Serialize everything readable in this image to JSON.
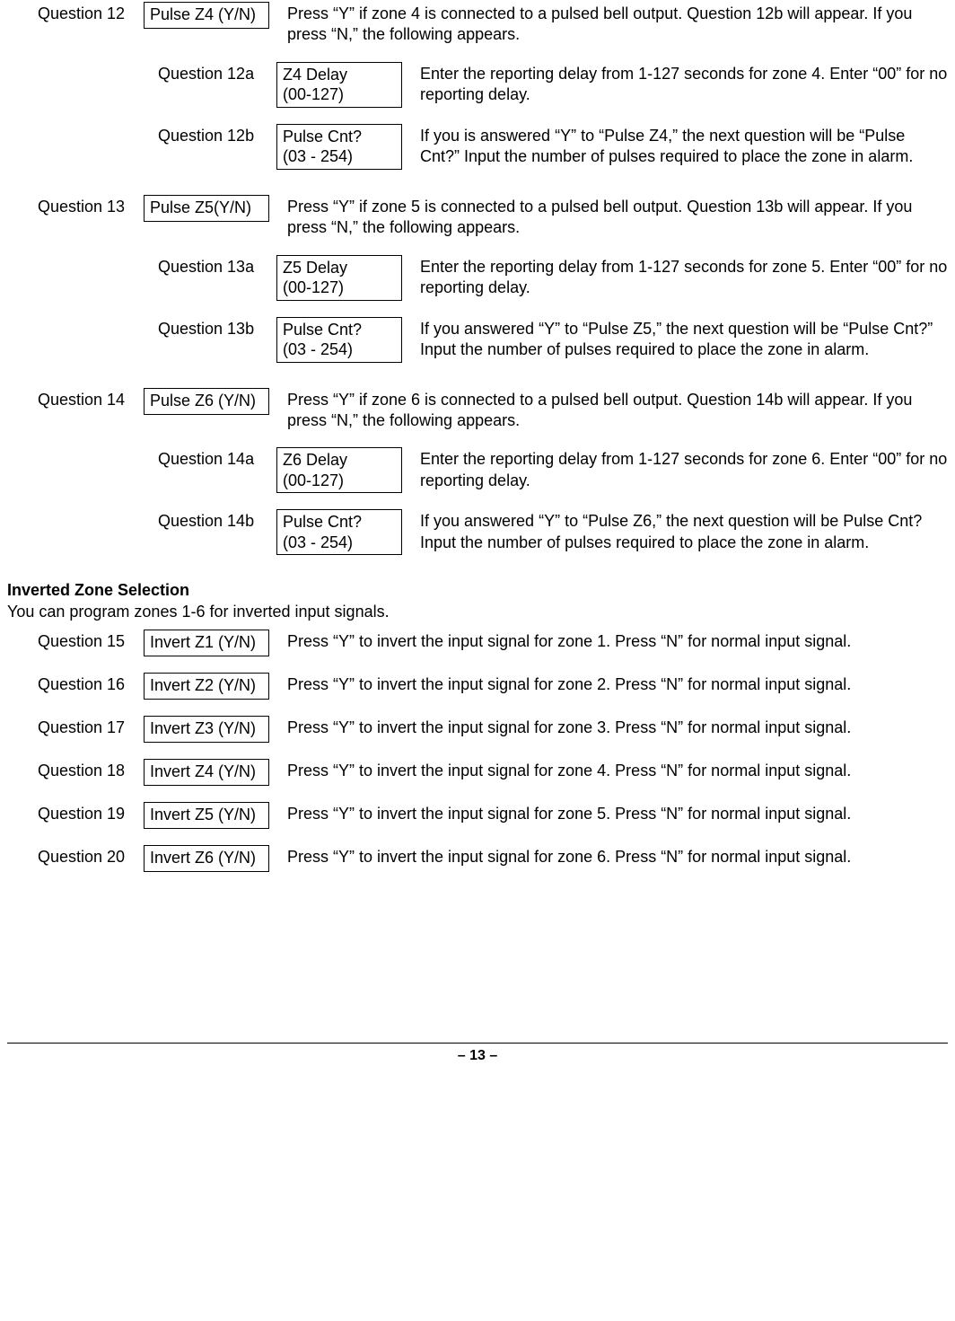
{
  "page": {
    "number": "– 13 –"
  },
  "section_inverted": {
    "heading": "Inverted Zone Selection",
    "intro": "You can program zones 1-6 for inverted input signals."
  },
  "rows": [
    {
      "id": "q12",
      "level": "main",
      "q": "Question 12",
      "disp": "Pulse Z4 (Y/N)",
      "disp_lines": 1,
      "desc": "Press “Y” if zone 4 is connected to a pulsed bell output. Question 12b will appear. If you press “N,” the following appears."
    },
    {
      "id": "q12a",
      "level": "sub",
      "q": "Question 12a",
      "disp": "Z4 Delay\n(00-127)",
      "disp_lines": 2,
      "desc": "Enter the reporting delay from 1-127 seconds for zone 4. Enter “00” for no reporting delay."
    },
    {
      "id": "q12b",
      "level": "sub",
      "q": "Question 12b",
      "disp": "Pulse Cnt?\n(03 - 254)",
      "disp_lines": 2,
      "desc": "If you is answered “Y” to “Pulse Z4,” the next question will be “Pulse Cnt?”  Input the number of pulses required to place the zone in alarm."
    },
    {
      "id": "q13",
      "level": "main",
      "q": "Question 13",
      "disp": "Pulse Z5(Y/N)",
      "disp_lines": 1,
      "desc": "Press “Y” if zone 5 is connected to a pulsed bell output. Question 13b will appear. If you press “N,” the following appears."
    },
    {
      "id": "q13a",
      "level": "sub",
      "q": "Question 13a",
      "disp": "Z5 Delay\n(00-127)",
      "disp_lines": 2,
      "desc": "Enter the reporting delay from 1-127 seconds for zone 5. Enter “00” for no reporting delay."
    },
    {
      "id": "q13b",
      "level": "sub",
      "q": "Question 13b",
      "disp": "Pulse Cnt?\n(03 - 254)",
      "disp_lines": 2,
      "desc": "If you answered “Y” to “Pulse Z5,” the next question will be “Pulse Cnt?”  Input the number of pulses required to place the zone in alarm."
    },
    {
      "id": "q14",
      "level": "main",
      "q": "Question 14",
      "disp": "Pulse Z6 (Y/N)",
      "disp_lines": 1,
      "desc": "Press “Y” if zone 6 is connected to a pulsed bell output. Question 14b will appear. If you press “N,” the following appears."
    },
    {
      "id": "q14a",
      "level": "sub",
      "q": "Question 14a",
      "disp": "Z6 Delay\n(00-127)",
      "disp_lines": 2,
      "desc": "Enter the reporting delay from 1-127 seconds for zone 6. Enter “00” for no reporting delay."
    },
    {
      "id": "q14b",
      "level": "sub",
      "q": "Question 14b",
      "disp": "Pulse Cnt?\n(03 - 254)",
      "disp_lines": 2,
      "desc": "If you answered “Y” to “Pulse Z6,” the next question will be Pulse Cnt?  Input the number of pulses required to place the zone in alarm."
    }
  ],
  "rows_invert": [
    {
      "id": "q15",
      "q": "Question 15",
      "disp": "Invert Z1 (Y/N)",
      "desc": "Press “Y” to invert the input signal for zone 1. Press “N” for normal input signal."
    },
    {
      "id": "q16",
      "q": "Question 16",
      "disp": "Invert Z2 (Y/N)",
      "desc": "Press “Y” to invert the input signal for zone 2. Press “N” for normal input signal."
    },
    {
      "id": "q17",
      "q": "Question 17",
      "disp": "Invert Z3 (Y/N)",
      "desc": "Press “Y” to invert the input signal for zone 3. Press “N” for normal input signal."
    },
    {
      "id": "q18",
      "q": "Question 18",
      "disp": "Invert Z4 (Y/N)",
      "desc": "Press “Y” to invert the input signal for zone 4. Press “N” for normal input signal."
    },
    {
      "id": "q19",
      "q": "Question 19",
      "disp": "Invert Z5 (Y/N)",
      "desc": "Press “Y” to invert the input signal for zone 5. Press “N” for normal input signal."
    },
    {
      "id": "q20",
      "q": "Question 20",
      "disp": "Invert Z6 (Y/N)",
      "desc": "Press “Y” to invert the input signal for zone 6. Press “N” for normal input signal."
    }
  ]
}
